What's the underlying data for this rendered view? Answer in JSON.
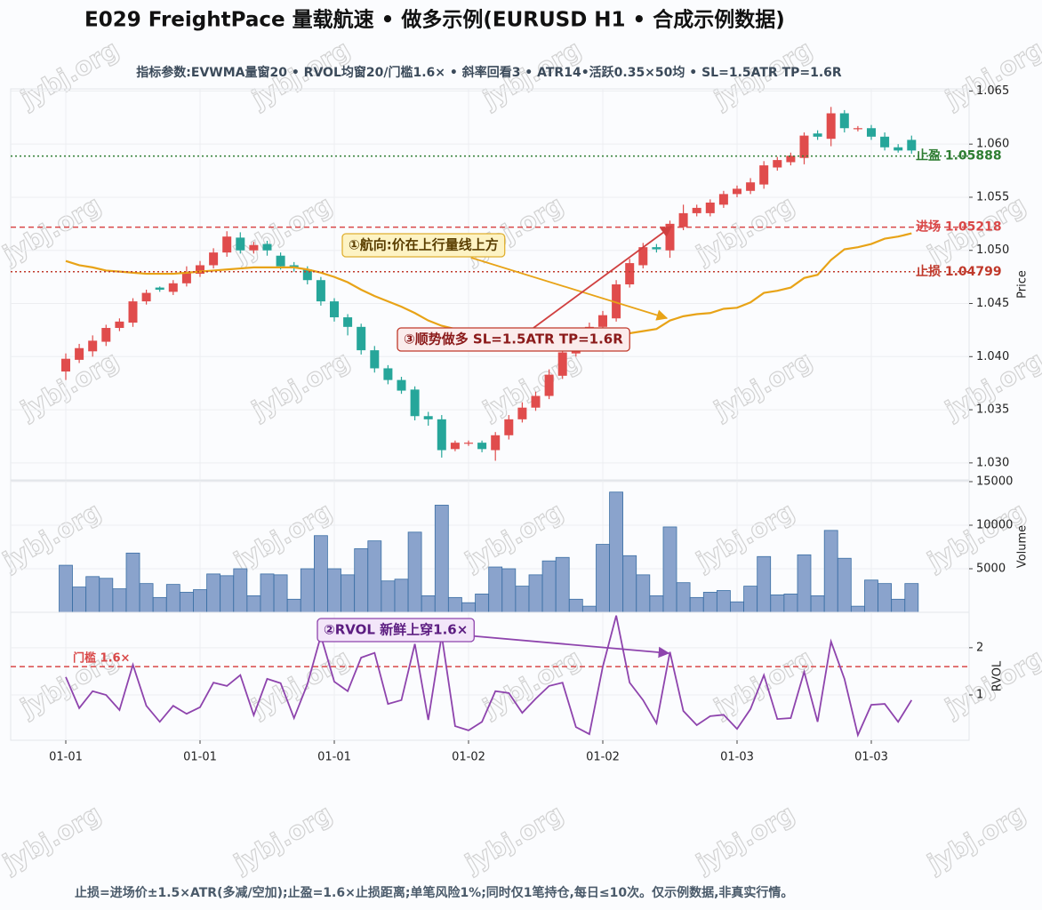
{
  "title": "E029 FreightPace 量载航速 • 做多示例(EURUSD H1 • 合成示例数据)",
  "subtitle": "指标参数:EVWMA量窗20 • RVOL均窗20/门槛1.6× • 斜率回看3 • ATR14•活跃0.35×50均 • SL=1.5ATR TP=1.6R",
  "footnote": "止损=进场价±1.5×ATR(多减/空加);止盈=1.6×止损距离;单笔风险1%;同时仅1笔持仓,每日≤10次。仅示例数据,非真实行情。",
  "watermark": "jybj.org",
  "chart_data": [
    {
      "type": "candlestick",
      "ylabel": "Price",
      "ylim": [
        1.0284,
        1.0652
      ],
      "yticks": [
        {
          "value": 1.03,
          "label": "1.030"
        },
        1.035,
        {
          "value": 1.04,
          "label": "1.040"
        },
        1.045,
        {
          "value": 1.05,
          "label": "1.050"
        },
        1.055,
        {
          "value": 1.06,
          "label": "1.060"
        },
        1.065
      ],
      "up_color": "#e04c4c",
      "down_color": "#26a69a",
      "grid": true,
      "open": [
        1.0386,
        1.0397,
        1.0405,
        1.0414,
        1.0427,
        1.0432,
        1.0452,
        1.0465,
        1.0461,
        1.0469,
        1.0478,
        1.0486,
        1.0498,
        1.0512,
        1.05,
        1.0506,
        1.0495,
        1.0486,
        1.0482,
        1.0472,
        1.0452,
        1.0437,
        1.0428,
        1.0406,
        1.0389,
        1.0378,
        1.0369,
        1.0344,
        1.0341,
        1.0313,
        1.0318,
        1.0319,
        1.0312,
        1.0326,
        1.0341,
        1.0352,
        1.0363,
        1.0382,
        1.0403,
        1.0417,
        1.0428,
        1.0436,
        1.0468,
        1.0486,
        1.0503,
        1.05,
        1.0522,
        1.0535,
        1.0535,
        1.0543,
        1.0553,
        1.0556,
        1.0562,
        1.0578,
        1.0583,
        1.0587,
        1.061,
        1.0605,
        1.0629,
        1.0614,
        1.0615,
        1.0607,
        1.0597,
        1.0604
      ],
      "high": [
        1.0403,
        1.0412,
        1.042,
        1.043,
        1.0436,
        1.0455,
        1.0463,
        1.0466,
        1.0472,
        1.0485,
        1.049,
        1.0502,
        1.0518,
        1.0517,
        1.0508,
        1.0509,
        1.0498,
        1.0489,
        1.0485,
        1.0475,
        1.0455,
        1.044,
        1.0431,
        1.041,
        1.0392,
        1.0381,
        1.0372,
        1.0348,
        1.0345,
        1.0321,
        1.0321,
        1.0321,
        1.0329,
        1.0345,
        1.0357,
        1.0367,
        1.0388,
        1.041,
        1.0423,
        1.0432,
        1.0443,
        1.0472,
        1.0492,
        1.0507,
        1.0506,
        1.0528,
        1.0543,
        1.0543,
        1.0548,
        1.0556,
        1.0561,
        1.0568,
        1.0584,
        1.0588,
        1.0592,
        1.0611,
        1.0613,
        1.0635,
        1.0632,
        1.0617,
        1.0618,
        1.0611,
        1.06,
        1.0608
      ],
      "low": [
        1.0378,
        1.0394,
        1.04,
        1.041,
        1.0424,
        1.0428,
        1.0449,
        1.0461,
        1.0458,
        1.0466,
        1.0475,
        1.0483,
        1.0494,
        1.0497,
        1.0497,
        1.0495,
        1.0482,
        1.048,
        1.0468,
        1.0448,
        1.0433,
        1.042,
        1.0402,
        1.0385,
        1.0374,
        1.0365,
        1.034,
        1.0335,
        1.0305,
        1.0311,
        1.0316,
        1.031,
        1.0302,
        1.0322,
        1.0338,
        1.0349,
        1.036,
        1.0379,
        1.04,
        1.0414,
        1.0425,
        1.0433,
        1.0465,
        1.0483,
        1.0498,
        1.0493,
        1.0519,
        1.0532,
        1.0532,
        1.054,
        1.055,
        1.0553,
        1.0558,
        1.0575,
        1.058,
        1.0581,
        1.0604,
        1.0598,
        1.0611,
        1.0612,
        1.0604,
        1.0594,
        1.0592,
        1.0591
      ],
      "close": [
        1.0398,
        1.0408,
        1.0415,
        1.0427,
        1.0433,
        1.0452,
        1.046,
        1.0463,
        1.0469,
        1.0479,
        1.0486,
        1.0498,
        1.0513,
        1.05,
        1.0505,
        1.05,
        1.0485,
        1.0484,
        1.0472,
        1.0452,
        1.0437,
        1.0428,
        1.0406,
        1.0389,
        1.0378,
        1.0368,
        1.0344,
        1.0341,
        1.0312,
        1.0319,
        1.0319,
        1.0313,
        1.0326,
        1.0341,
        1.0352,
        1.0363,
        1.0383,
        1.0404,
        1.0419,
        1.0428,
        1.0439,
        1.0468,
        1.0488,
        1.0503,
        1.0501,
        1.0525,
        1.0535,
        1.054,
        1.0545,
        1.0553,
        1.0558,
        1.0564,
        1.058,
        1.0585,
        1.0589,
        1.0608,
        1.0607,
        1.0629,
        1.0615,
        1.0615,
        1.0607,
        1.0597,
        1.0594,
        1.0594
      ],
      "overlay": {
        "color": "#e8a317",
        "values": [
          1.049,
          1.0486,
          1.0484,
          1.0481,
          1.048,
          1.0479,
          1.0478,
          1.0478,
          1.0478,
          1.0479,
          1.048,
          1.0481,
          1.0482,
          1.0483,
          1.0484,
          1.0484,
          1.0484,
          1.0484,
          1.0482,
          1.0479,
          1.0475,
          1.047,
          1.0463,
          1.0457,
          1.0452,
          1.0447,
          1.0441,
          1.0434,
          1.0429,
          1.0426,
          1.0422,
          1.042,
          1.0418,
          1.0416,
          1.0415,
          1.0414,
          1.0414,
          1.0415,
          1.0416,
          1.0417,
          1.0419,
          1.0421,
          1.0422,
          1.0424,
          1.0426,
          1.0434,
          1.0438,
          1.044,
          1.0441,
          1.0445,
          1.0446,
          1.0451,
          1.046,
          1.0462,
          1.0465,
          1.0474,
          1.0477,
          1.0491,
          1.0501,
          1.0503,
          1.0506,
          1.0511,
          1.0513,
          1.0516
        ]
      },
      "levels": [
        {
          "label": "止盈 1.05888",
          "value": 1.05888,
          "color": "#2e7d32",
          "style": "dotted"
        },
        {
          "label": "进场 1.05218",
          "value": 1.05218,
          "color": "#d94848",
          "style": "dashed"
        },
        {
          "label": "止损 1.04799",
          "value": 1.04799,
          "color": "#c0392b",
          "style": "dotted"
        }
      ],
      "annotations": [
        "①航向:价在上行量线上方",
        "③顺势做多 SL=1.5ATR TP=1.6R"
      ]
    },
    {
      "type": "bar",
      "ylabel": "Volume",
      "ylim": [
        0,
        15100
      ],
      "yticks": [
        5000,
        10000,
        15000
      ],
      "color": "#8aa3cc",
      "edge_color": "#3b6fa5",
      "grid": true,
      "values": [
        5400,
        2900,
        4100,
        3900,
        2700,
        6800,
        3300,
        1700,
        3200,
        2300,
        2600,
        4400,
        4200,
        5000,
        1900,
        4400,
        4300,
        1500,
        5000,
        8800,
        5000,
        4300,
        7300,
        8200,
        3600,
        3800,
        9200,
        1900,
        12300,
        1700,
        1100,
        2100,
        5200,
        5000,
        3000,
        4300,
        5900,
        6300,
        1500,
        700,
        7800,
        13800,
        6500,
        4300,
        1900,
        9800,
        3400,
        1700,
        2300,
        2500,
        1200,
        3000,
        6400,
        2000,
        2100,
        6600,
        1900,
        9400,
        6200,
        700,
        3700,
        3300,
        1500,
        3300
      ]
    },
    {
      "type": "line",
      "ylabel": "RVOL",
      "ylim": [
        0.04,
        2.75
      ],
      "yticks": [
        1,
        2
      ],
      "color": "#8e44ad",
      "grid": true,
      "threshold": {
        "value": 1.6,
        "label": "门槛 1.6×",
        "color": "#d94848"
      },
      "categories": [
        "01-01",
        null,
        null,
        null,
        null,
        null,
        null,
        null,
        null,
        null,
        "01-01",
        null,
        null,
        null,
        null,
        null,
        null,
        null,
        null,
        null,
        "01-01",
        null,
        null,
        null,
        null,
        null,
        null,
        null,
        null,
        null,
        "01-02",
        null,
        null,
        null,
        null,
        null,
        null,
        null,
        null,
        null,
        "01-02",
        null,
        null,
        null,
        null,
        null,
        null,
        null,
        null,
        null,
        "01-03",
        null,
        null,
        null,
        null,
        null,
        null,
        null,
        null,
        null,
        "01-03",
        null,
        null,
        null
      ],
      "values": [
        1.38,
        0.72,
        1.08,
        1.0,
        0.68,
        1.64,
        0.77,
        0.43,
        0.77,
        0.6,
        0.74,
        1.26,
        1.19,
        1.42,
        0.57,
        1.34,
        1.25,
        0.51,
        1.23,
        2.25,
        1.28,
        1.08,
        1.79,
        1.89,
        0.81,
        0.89,
        2.08,
        0.47,
        2.26,
        0.34,
        0.25,
        0.43,
        1.08,
        1.04,
        0.62,
        0.92,
        1.19,
        1.26,
        0.32,
        0.17,
        1.6,
        2.68,
        1.26,
        0.89,
        0.4,
        1.91,
        0.66,
        0.36,
        0.55,
        0.58,
        0.28,
        0.7,
        1.42,
        0.49,
        0.51,
        1.49,
        0.43,
        2.13,
        1.34,
        0.15,
        0.79,
        0.81,
        0.43,
        0.89
      ],
      "annotations": [
        "②RVOL 新鲜上穿1.6×"
      ]
    }
  ]
}
